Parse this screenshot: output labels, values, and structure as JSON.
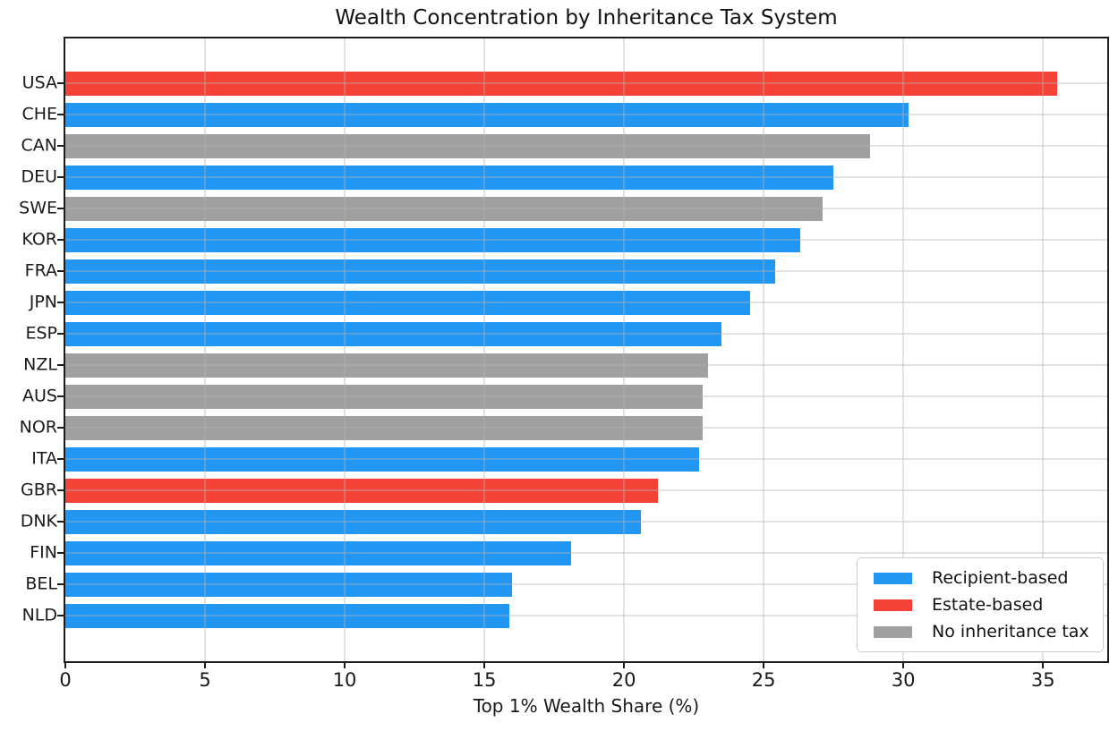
{
  "chart_data": {
    "type": "bar",
    "orientation": "horizontal",
    "title": "Wealth Concentration by Inheritance Tax System",
    "xlabel": "Top 1% Wealth Share (%)",
    "categories": [
      "USA",
      "CHE",
      "CAN",
      "DEU",
      "SWE",
      "KOR",
      "FRA",
      "JPN",
      "ESP",
      "NZL",
      "AUS",
      "NOR",
      "ITA",
      "GBR",
      "DNK",
      "FIN",
      "BEL",
      "NLD"
    ],
    "values": [
      35.5,
      30.2,
      28.8,
      27.5,
      27.1,
      26.3,
      25.4,
      24.5,
      23.5,
      23.0,
      22.8,
      22.8,
      22.7,
      21.2,
      20.6,
      18.1,
      16.0,
      15.9
    ],
    "groups": [
      "estate",
      "recipient",
      "none",
      "recipient",
      "none",
      "recipient",
      "recipient",
      "recipient",
      "recipient",
      "none",
      "none",
      "none",
      "recipient",
      "estate",
      "recipient",
      "recipient",
      "recipient",
      "recipient"
    ],
    "group_colors": {
      "recipient": "#2196F3",
      "estate": "#F44336",
      "none": "#A0A0A0"
    },
    "xticks": [
      0,
      5,
      10,
      15,
      20,
      25,
      30,
      35
    ],
    "xlim": [
      0,
      37.3
    ],
    "grid": true,
    "legend": {
      "position": "lower right",
      "entries": [
        {
          "label": "Recipient-based",
          "group": "recipient"
        },
        {
          "label": "Estate-based",
          "group": "estate"
        },
        {
          "label": "No inheritance tax",
          "group": "none"
        }
      ]
    }
  }
}
